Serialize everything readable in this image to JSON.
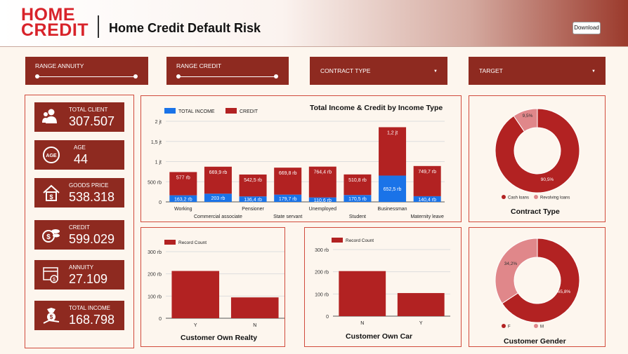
{
  "header": {
    "logo_line1": "HOME",
    "logo_line2": "CREDIT",
    "title": "Home Credit Default Risk",
    "download_label": "Download"
  },
  "filters": [
    {
      "label": "RANGE ANNUITY",
      "kind": "slider"
    },
    {
      "label": "RANGE CREDIT",
      "kind": "slider"
    },
    {
      "label": "CONTRACT TYPE",
      "kind": "dropdown"
    },
    {
      "label": "TARGET",
      "kind": "dropdown"
    }
  ],
  "kpis": [
    {
      "label": "TOTAL CLIENT",
      "value": "307.507",
      "icon": "people-icon"
    },
    {
      "label": "AGE",
      "value": "44",
      "icon": "age-icon"
    },
    {
      "label": "GOODS PRICE",
      "value": "538.318",
      "icon": "house-price-icon"
    },
    {
      "label": "CREDIT",
      "value": "599.029",
      "icon": "coins-icon"
    },
    {
      "label": "ANNUITY",
      "value": "27.109",
      "icon": "calendar-money-icon"
    },
    {
      "label": "TOTAL INCOME",
      "value": "168.798",
      "icon": "money-hand-icon"
    }
  ],
  "colors": {
    "primary": "#8e2a20",
    "credit": "#b22222",
    "income": "#1a73e8",
    "pink": "#e0878a"
  },
  "chart_data": [
    {
      "type": "bar",
      "title": "Total Income & Credit by Income Type",
      "stacked": true,
      "categories": [
        "Working",
        "Commercial associate",
        "Pensioner",
        "State servant",
        "Unemployed",
        "Student",
        "Businessman",
        "Maternity leave"
      ],
      "series": [
        {
          "name": "TOTAL INCOME",
          "values": [
            163200,
            203000,
            136400,
            179700,
            110600,
            170500,
            652500,
            140400
          ],
          "labels": [
            "163,2 rb",
            "203 rb",
            "136,4 rb",
            "179,7 rb",
            "110,6 rb",
            "170,5 rb",
            "652,5 rb",
            "140,4 rb"
          ]
        },
        {
          "name": "CREDIT",
          "values": [
            577000,
            669900,
            542500,
            669800,
            764400,
            510800,
            1200000,
            749700
          ],
          "labels": [
            "577 rb",
            "669,9 rb",
            "542,5 rb",
            "669,8 rb",
            "764,4 rb",
            "510,8 rb",
            "1,2 jt",
            "749,7 rb"
          ]
        }
      ],
      "yticks": [
        "0",
        "500 rb",
        "1 jt",
        "1,5 jt",
        "2 jt"
      ],
      "ylim": [
        0,
        2000000
      ],
      "legend": "top-left"
    },
    {
      "type": "bar",
      "title": "Customer Own Realty",
      "categories": [
        "Y",
        "N"
      ],
      "series": [
        {
          "name": "Record Count",
          "values": [
            213000,
            94000
          ]
        }
      ],
      "yticks": [
        "0",
        "100 rb",
        "200 rb",
        "300 rb"
      ],
      "ylim": [
        0,
        300000
      ],
      "legend": "top-left"
    },
    {
      "type": "bar",
      "title": "Customer Own Car",
      "categories": [
        "N",
        "Y"
      ],
      "series": [
        {
          "name": "Record Count",
          "values": [
            203000,
            104000
          ]
        }
      ],
      "yticks": [
        "0",
        "100 rb",
        "200 rb",
        "300 rb"
      ],
      "ylim": [
        0,
        300000
      ],
      "legend": "top-left"
    },
    {
      "type": "pie",
      "title": "Contract Type",
      "slices": [
        {
          "name": "Cash loans",
          "value": 90.5,
          "label": "90,5%"
        },
        {
          "name": "Revolving loans",
          "value": 9.5,
          "label": "9,5%"
        }
      ],
      "legend": "bottom"
    },
    {
      "type": "pie",
      "title": "Customer Gender",
      "slices": [
        {
          "name": "F",
          "value": 65.8,
          "label": "65,8%"
        },
        {
          "name": "M",
          "value": 34.2,
          "label": "34,2%"
        }
      ],
      "legend": "bottom"
    }
  ]
}
